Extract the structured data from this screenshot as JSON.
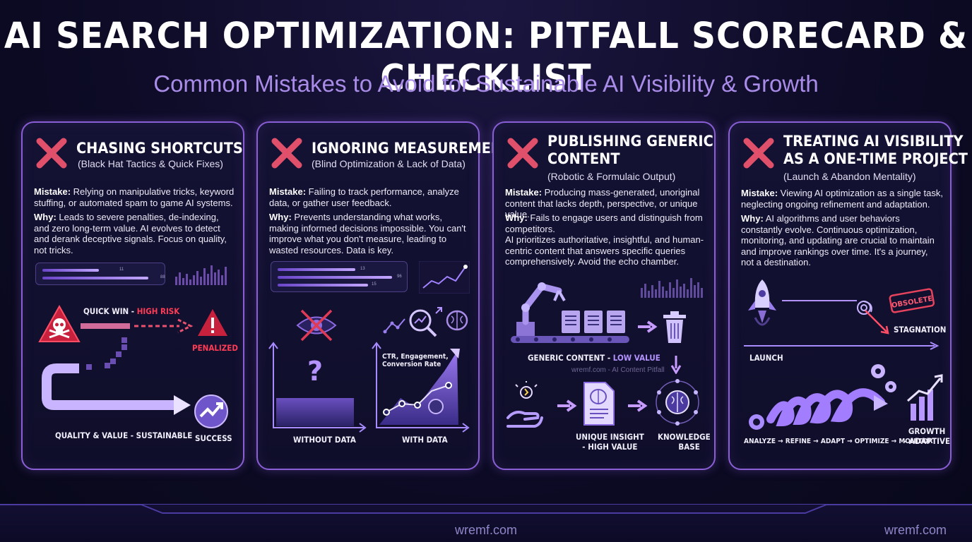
{
  "header": {
    "title": "AI SEARCH OPTIMIZATION: PITFALL SCORECARD & CHECKLIST",
    "subtitle": "Common Mistakes to Avoid for Sustainable AI Visibility & Growth"
  },
  "labels": {
    "mistake": "Mistake:",
    "why": "Why:"
  },
  "cards": [
    {
      "title_lines": [
        "CHASING SHORTCUTS"
      ],
      "subtitle": "(Black Hat Tactics & Quick Fixes)",
      "mistake": "Relying on manipulative tricks, keyword stuffing, or automated spam to game AI systems.",
      "why": "Leads to severe penalties, de-indexing, and zero long-term value. AI evolves to detect and derank deceptive signals. Focus on quality, not tricks.",
      "mini_values": [
        "11",
        "88"
      ],
      "quick_win": "QUICK WIN - ",
      "high_risk": "HIGH RISK",
      "penalized": "PENALIZED",
      "quality": "QUALITY & VALUE - SUSTAINABLE",
      "success": "SUCCESS"
    },
    {
      "title_lines": [
        "IGNORING MEASUREMENT"
      ],
      "subtitle": "(Blind Optimization & Lack of Data)",
      "mistake": "Failing to track performance, analyze data, or gather user feedback.",
      "why": "Prevents understanding what works, making informed decisions impossible. You can't improve what you don't measure, leading to wasted resources. Data is key.",
      "mini_values": [
        "13",
        "96",
        "15"
      ],
      "question": "?",
      "metrics_line1": "CTR, Engagement,",
      "metrics_line2": "Conversion Rate",
      "without": "WITHOUT DATA",
      "with": "WITH DATA"
    },
    {
      "title_lines": [
        "PUBLISHING GENERIC",
        "CONTENT"
      ],
      "subtitle": "(Robotic & Formulaic Output)",
      "mistake": "Producing mass-generated, unoriginal content that lacks depth, perspective, or unique value.",
      "why": "Fails to engage users and distinguish from competitors.",
      "extra": "AI prioritizes authoritative, insightful, and human-centric content that answers specific queries comprehensively. Avoid the echo chamber.",
      "generic": "GENERIC CONTENT - ",
      "low_value": "LOW VALUE",
      "watermark": "wremf.com - AI Content Pitfall",
      "unique_line1": "UNIQUE INSIGHT",
      "unique_line2": "- HIGH VALUE",
      "kb_line1": "KNOWLEDGE",
      "kb_line2": "BASE"
    },
    {
      "title_lines": [
        "TREATING AI VISIBILITY",
        "AS A ONE-TIME PROJECT"
      ],
      "subtitle": "(Launch & Abandon Mentality)",
      "mistake": "Viewing AI optimization as a single task, neglecting ongoing refinement and adaptation.",
      "why": "AI algorithms and user behaviors constantly evolve. Continuous optimization, monitoring, and updating are crucial to maintain and improve rankings over time. It's a journey, not a destination.",
      "obsolete": "OBSOLETE",
      "stagnation": "STAGNATION",
      "launch": "LAUNCH",
      "cycle": "ANALYZE → REFINE → ADAPT → OPTIMIZE → MONITOR",
      "growth_line1": "GROWTH",
      "growth_line2": "- ADAPTIVE"
    }
  ],
  "footer": {
    "center": "wremf.com",
    "right": "wremf.com"
  },
  "colors": {
    "accent": "#8a5fd6",
    "danger": "#ff3b55",
    "text": "#ffffff",
    "subtitle": "#a98ce8"
  }
}
